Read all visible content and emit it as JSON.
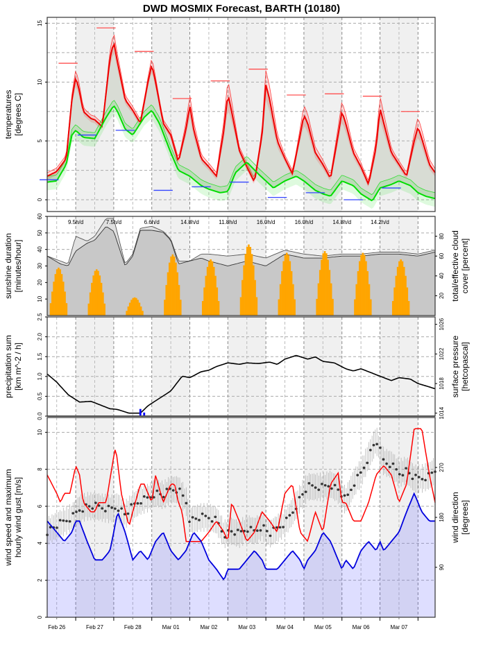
{
  "chart_data": {
    "type": "line",
    "title": "DWD MOSMIX Forecast, BARTH (10180)",
    "x": {
      "day_labels": [
        "Feb 26",
        "Feb 27",
        "Feb 28",
        "Mar 01",
        "Mar 02",
        "Mar 03",
        "Mar 04",
        "Mar 05",
        "Mar 06",
        "Mar 07"
      ],
      "start_day_offset": -0.25,
      "end_day_offset": 9.95,
      "grid": true,
      "weekend_shading": "alternate days shaded light grey"
    },
    "panels": [
      {
        "id": "temperature",
        "ylabel": [
          "temperatures",
          "[degrees C]"
        ],
        "ylim": [
          -1,
          15.5
        ],
        "yticks": [
          0,
          5,
          10,
          15
        ],
        "series": [
          {
            "name": "temperature",
            "color": "#ff0000",
            "x": [
              -0.25,
              0,
              0.25,
              0.4,
              0.5,
              0.58,
              0.7,
              0.9,
              1.0,
              1.2,
              1.4,
              1.5,
              1.58,
              1.8,
              2.0,
              2.2,
              2.4,
              2.5,
              2.6,
              2.8,
              3.0,
              3.2,
              3.4,
              3.5,
              3.6,
              3.8,
              4.0,
              4.2,
              4.4,
              4.5,
              4.6,
              4.8,
              5.0,
              5.2,
              5.4,
              5.5,
              5.6,
              5.8,
              6.0,
              6.2,
              6.4,
              6.5,
              6.6,
              6.8,
              7.0,
              7.2,
              7.4,
              7.5,
              7.6,
              7.8,
              8.0,
              8.2,
              8.4,
              8.5,
              8.6,
              8.8,
              9.0,
              9.2,
              9.4,
              9.5,
              9.6,
              9.8,
              9.95
            ],
            "y": [
              2.0,
              2.4,
              3.5,
              8.5,
              10.4,
              9.5,
              7.5,
              6.9,
              6.8,
              6.2,
              12.0,
              13.4,
              12.0,
              8.5,
              7.6,
              6.5,
              10.0,
              11.5,
              10.0,
              6.5,
              5.5,
              3.2,
              6.0,
              8.0,
              6.0,
              3.5,
              2.8,
              2.0,
              6.0,
              9.0,
              7.5,
              4.2,
              2.8,
              1.5,
              5.5,
              9.8,
              8.5,
              5.0,
              3.5,
              2.2,
              5.5,
              7.2,
              6.5,
              4.0,
              3.0,
              1.8,
              5.5,
              7.5,
              6.5,
              4.0,
              2.8,
              1.3,
              4.5,
              7.8,
              6.5,
              4.0,
              3.0,
              2.0,
              5.0,
              6.2,
              5.2,
              3.0,
              2.3
            ]
          },
          {
            "name": "dewpoint",
            "color": "#00ee00",
            "x": [
              -0.25,
              0,
              0.25,
              0.4,
              0.5,
              0.7,
              1.0,
              1.3,
              1.5,
              1.6,
              1.8,
              2.0,
              2.3,
              2.5,
              2.7,
              3.0,
              3.2,
              3.5,
              3.8,
              4.0,
              4.3,
              4.5,
              4.7,
              5.0,
              5.3,
              5.5,
              5.7,
              6.0,
              6.3,
              6.5,
              6.8,
              7.0,
              7.2,
              7.5,
              7.8,
              8.0,
              8.3,
              8.5,
              8.8,
              9.0,
              9.3,
              9.5,
              9.7,
              9.95
            ],
            "y": [
              1.5,
              1.6,
              3.0,
              5.5,
              5.9,
              5.3,
              5.2,
              7.0,
              8.0,
              7.5,
              6.0,
              5.5,
              7.0,
              7.6,
              6.5,
              4.0,
              2.5,
              2.0,
              1.2,
              0.9,
              0.6,
              0.7,
              2.3,
              3.2,
              2.2,
              1.6,
              1.0,
              1.6,
              2.0,
              1.6,
              0.8,
              0.5,
              0.3,
              1.6,
              1.2,
              0.5,
              -0.1,
              1.0,
              1.3,
              1.6,
              1.2,
              0.6,
              0.3,
              0.1
            ]
          },
          {
            "name": "daily max/min markers",
            "note": "horizontal bars: red = Tmax, blue = Tmin, per half-day"
          }
        ],
        "daily_tmax": [
          11.6,
          14.6,
          12.6,
          8.6,
          10.1,
          11.1,
          8.9,
          9.0,
          8.8,
          7.5
        ],
        "daily_tmin": [
          1.7,
          5.5,
          5.9,
          0.8,
          1.1,
          1.5,
          0.2,
          0.6,
          0.0,
          1.0
        ]
      },
      {
        "id": "sunshine",
        "ylabel": [
          "sunshine duration",
          "[minutes/hour]"
        ],
        "ylabel_right": [
          "total/effective cloud",
          "cover [percent]"
        ],
        "ylim": [
          0,
          60
        ],
        "yticks": [
          10,
          20,
          30,
          40,
          50,
          60
        ],
        "yticks_right": [
          20,
          40,
          60,
          80
        ],
        "daily_sunshine_labels": [
          "9.5h/d",
          "7.5h/d",
          "6.6h/d",
          "14.8h/d",
          "11.8h/d",
          "16.0h/d",
          "16.0h/d",
          "14.8h/d",
          "14.2h/d"
        ],
        "sunshine_peaks_min_per_hour": [
          29,
          28,
          11,
          37,
          34,
          43,
          38,
          39,
          38,
          34
        ],
        "cloud_total": {
          "color": "#555555",
          "x": [
            -0.25,
            0.1,
            0.3,
            0.5,
            0.8,
            1.0,
            1.3,
            1.5,
            1.8,
            2.0,
            2.2,
            2.5,
            2.8,
            3.0,
            3.2,
            3.5,
            3.8,
            4.0,
            4.5,
            5.0,
            5.5,
            6.0,
            6.5,
            7.0,
            7.5,
            8.0,
            8.5,
            9.0,
            9.5,
            9.95
          ],
          "y": [
            60,
            55,
            52,
            80,
            75,
            80,
            98,
            98,
            52,
            62,
            88,
            90,
            85,
            77,
            55,
            55,
            62,
            62,
            60,
            62,
            58,
            66,
            62,
            60,
            62,
            62,
            64,
            64,
            62,
            66
          ]
        },
        "cloud_effective": {
          "color": "#333333",
          "x": [
            -0.25,
            0.1,
            0.3,
            0.5,
            0.8,
            1.0,
            1.3,
            1.5,
            1.8,
            2.0,
            2.2,
            2.5,
            2.8,
            3.0,
            3.2,
            3.5,
            3.8,
            4.0,
            4.5,
            5.0,
            5.5,
            6.0,
            6.5,
            7.0,
            7.5,
            8.0,
            8.5,
            9.0,
            9.5,
            9.95
          ],
          "y": [
            60,
            52,
            50,
            65,
            73,
            76,
            90,
            85,
            50,
            60,
            86,
            86,
            84,
            76,
            52,
            55,
            58,
            55,
            50,
            55,
            50,
            62,
            58,
            58,
            60,
            60,
            62,
            62,
            60,
            64
          ]
        }
      },
      {
        "id": "precipitation",
        "ylabel": [
          "precipitation sum",
          "[km m^-2 / h]"
        ],
        "ylabel_right": [
          "surface pressure",
          "[hetcopascal]"
        ],
        "ylim": [
          0,
          2.5
        ],
        "yticks": [
          0.0,
          0.5,
          1.0,
          1.5,
          2.0,
          2.5
        ],
        "yticks_right": [
          1014,
          1018,
          1022,
          1026
        ],
        "pressure_lim": [
          1013.6,
          1027.0
        ],
        "precipitation": {
          "color": "#0000ff",
          "x": [
            2.2,
            2.3
          ],
          "y": [
            0.18,
            0.09
          ]
        },
        "pressure": {
          "color": "#000000",
          "x": [
            -0.25,
            0,
            0.3,
            0.6,
            0.9,
            1.1,
            1.4,
            1.6,
            1.9,
            2.0,
            2.2,
            2.4,
            2.7,
            3.0,
            3.3,
            3.5,
            3.8,
            4.0,
            4.2,
            4.5,
            4.8,
            5.0,
            5.3,
            5.6,
            5.8,
            6.0,
            6.3,
            6.6,
            6.8,
            7.0,
            7.3,
            7.6,
            7.8,
            8.0,
            8.3,
            8.5,
            8.8,
            9.0,
            9.3,
            9.5,
            9.7,
            9.95
          ],
          "y": [
            1019.3,
            1018.2,
            1016.5,
            1015.5,
            1015.6,
            1015.2,
            1014.6,
            1014.5,
            1014.0,
            1014.0,
            1014.0,
            1015.0,
            1016.0,
            1017.0,
            1019.0,
            1018.8,
            1019.6,
            1019.8,
            1020.3,
            1020.8,
            1020.6,
            1020.8,
            1020.7,
            1020.9,
            1020.6,
            1021.3,
            1021.8,
            1021.3,
            1021.6,
            1021.0,
            1020.8,
            1020.0,
            1019.7,
            1020.0,
            1019.4,
            1019.0,
            1018.4,
            1018.8,
            1018.6,
            1018.0,
            1017.7,
            1017.3
          ]
        }
      },
      {
        "id": "wind",
        "ylabel": [
          "wind speed and maximum",
          "hourly wind gust [m/s]"
        ],
        "ylabel_right": [
          "wind direction",
          "[degrees]"
        ],
        "ylim": [
          0,
          10.8
        ],
        "yticks": [
          0,
          2,
          4,
          6,
          8,
          10
        ],
        "yticks_right": [
          90,
          180,
          270
        ],
        "direction_lim": [
          0,
          360
        ],
        "wind_speed": {
          "color": "#0000dd",
          "x": [
            -0.25,
            0,
            0.2,
            0.4,
            0.5,
            0.6,
            0.8,
            1.0,
            1.2,
            1.4,
            1.5,
            1.6,
            1.8,
            2.0,
            2.2,
            2.4,
            2.5,
            2.6,
            2.8,
            3.0,
            3.2,
            3.4,
            3.5,
            3.6,
            3.8,
            4.0,
            4.2,
            4.4,
            4.5,
            4.6,
            4.8,
            5.0,
            5.2,
            5.4,
            5.5,
            5.6,
            5.8,
            6.0,
            6.2,
            6.4,
            6.5,
            6.6,
            6.8,
            7.0,
            7.2,
            7.4,
            7.5,
            7.6,
            7.8,
            8.0,
            8.2,
            8.4,
            8.5,
            8.6,
            8.8,
            9.0,
            9.2,
            9.4,
            9.5,
            9.6,
            9.8,
            9.95
          ],
          "y": [
            5.2,
            4.6,
            4.1,
            4.6,
            5.2,
            5.2,
            4.1,
            3.1,
            3.1,
            3.6,
            4.6,
            5.7,
            4.6,
            3.1,
            3.6,
            3.1,
            3.6,
            4.1,
            4.6,
            3.6,
            3.1,
            3.6,
            4.1,
            4.6,
            4.1,
            3.1,
            2.6,
            2.0,
            2.6,
            2.6,
            2.6,
            3.1,
            3.6,
            3.1,
            2.6,
            2.6,
            2.6,
            3.1,
            3.6,
            3.1,
            2.6,
            3.1,
            3.6,
            4.6,
            4.1,
            3.1,
            2.6,
            3.1,
            2.6,
            3.6,
            4.1,
            3.6,
            4.1,
            3.6,
            4.1,
            4.6,
            5.7,
            6.7,
            6.2,
            5.7,
            5.2,
            5.2
          ]
        },
        "wind_gust": {
          "color": "#ff0000",
          "x": [
            -0.25,
            0,
            0.1,
            0.2,
            0.35,
            0.5,
            0.6,
            0.7,
            0.9,
            1.0,
            1.1,
            1.3,
            1.5,
            1.55,
            1.7,
            1.9,
            2.0,
            2.2,
            2.3,
            2.5,
            2.6,
            2.8,
            3.0,
            3.1,
            3.2,
            3.3,
            3.4,
            3.6,
            3.8,
            4.0,
            4.2,
            4.4,
            4.5,
            4.6,
            4.8,
            5.0,
            5.2,
            5.4,
            5.6,
            5.8,
            6.0,
            6.2,
            6.4,
            6.6,
            6.8,
            7.0,
            7.2,
            7.4,
            7.5,
            7.6,
            7.8,
            8.0,
            8.2,
            8.4,
            8.6,
            8.8,
            9.0,
            9.2,
            9.4,
            9.6,
            9.8,
            9.95
          ],
          "y": [
            7.7,
            6.7,
            6.2,
            6.7,
            6.7,
            8.2,
            7.7,
            6.2,
            5.7,
            5.7,
            6.2,
            6.2,
            8.7,
            9.2,
            6.7,
            4.9,
            5.7,
            7.2,
            7.2,
            6.2,
            7.7,
            6.2,
            7.2,
            7.2,
            6.2,
            5.7,
            4.1,
            4.1,
            4.1,
            4.6,
            5.2,
            4.6,
            4.1,
            6.2,
            5.2,
            4.1,
            4.6,
            5.7,
            5.2,
            4.6,
            6.7,
            7.2,
            4.6,
            4.1,
            5.7,
            4.6,
            7.2,
            7.8,
            6.2,
            6.2,
            5.2,
            5.2,
            6.2,
            7.7,
            8.2,
            7.7,
            6.2,
            7.2,
            10.2,
            10.2,
            7.7,
            6.2
          ]
        },
        "wind_direction_deg": {
          "color": "#333333",
          "x": [
            -0.25,
            0,
            0.4,
            0.6,
            0.8,
            1.0,
            1.4,
            1.6,
            1.8,
            2.0,
            2.2,
            2.4,
            2.6,
            2.8,
            3.0,
            3.2,
            3.4,
            3.5,
            3.8,
            4.0,
            4.2,
            4.4,
            4.6,
            4.8,
            5.0,
            5.2,
            5.4,
            5.6,
            5.8,
            6.0,
            6.2,
            6.4,
            6.6,
            6.8,
            7.0,
            7.2,
            7.4,
            7.6,
            7.8,
            8.0,
            8.2,
            8.4,
            8.5,
            8.6,
            8.8,
            9.0,
            9.2,
            9.4,
            9.6,
            9.8,
            9.95
          ],
          "y": [
            155,
            165,
            180,
            195,
            200,
            200,
            195,
            200,
            185,
            200,
            210,
            215,
            225,
            220,
            230,
            230,
            210,
            175,
            180,
            180,
            175,
            150,
            155,
            150,
            160,
            155,
            165,
            150,
            160,
            170,
            190,
            215,
            235,
            235,
            235,
            240,
            230,
            210,
            240,
            260,
            290,
            320,
            300,
            280,
            275,
            260,
            265,
            250,
            250,
            255,
            265
          ]
        }
      }
    ]
  }
}
